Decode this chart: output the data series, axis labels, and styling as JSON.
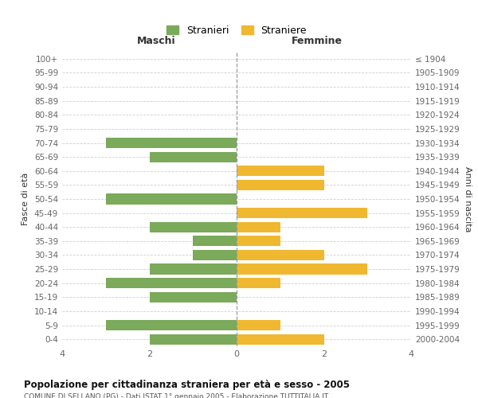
{
  "age_groups": [
    "100+",
    "95-99",
    "90-94",
    "85-89",
    "80-84",
    "75-79",
    "70-74",
    "65-69",
    "60-64",
    "55-59",
    "50-54",
    "45-49",
    "40-44",
    "35-39",
    "30-34",
    "25-29",
    "20-24",
    "15-19",
    "10-14",
    "5-9",
    "0-4"
  ],
  "birth_years": [
    "≤ 1904",
    "1905-1909",
    "1910-1914",
    "1915-1919",
    "1920-1924",
    "1925-1929",
    "1930-1934",
    "1935-1939",
    "1940-1944",
    "1945-1949",
    "1950-1954",
    "1955-1959",
    "1960-1964",
    "1965-1969",
    "1970-1974",
    "1975-1979",
    "1980-1984",
    "1985-1989",
    "1990-1994",
    "1995-1999",
    "2000-2004"
  ],
  "maschi": [
    0,
    0,
    0,
    0,
    0,
    0,
    3,
    2,
    0,
    0,
    3,
    0,
    2,
    1,
    1,
    2,
    3,
    2,
    0,
    3,
    2
  ],
  "femmine": [
    0,
    0,
    0,
    0,
    0,
    0,
    0,
    0,
    2,
    2,
    0,
    3,
    1,
    1,
    2,
    3,
    1,
    0,
    0,
    1,
    2
  ],
  "color_maschi": "#7aaa5a",
  "color_femmine": "#f0b830",
  "xlim": 4,
  "title": "Popolazione per cittadinanza straniera per età e sesso - 2005",
  "subtitle": "COMUNE DI SELLANO (PG) - Dati ISTAT 1° gennaio 2005 - Elaborazione TUTTITALIA.IT",
  "ylabel_left": "Fasce di età",
  "ylabel_right": "Anni di nascita",
  "xlabel_left": "Maschi",
  "xlabel_right": "Femmine",
  "legend_maschi": "Stranieri",
  "legend_femmine": "Straniere",
  "bg_color": "#ffffff",
  "grid_color": "#d0d0d0",
  "bar_height": 0.75
}
